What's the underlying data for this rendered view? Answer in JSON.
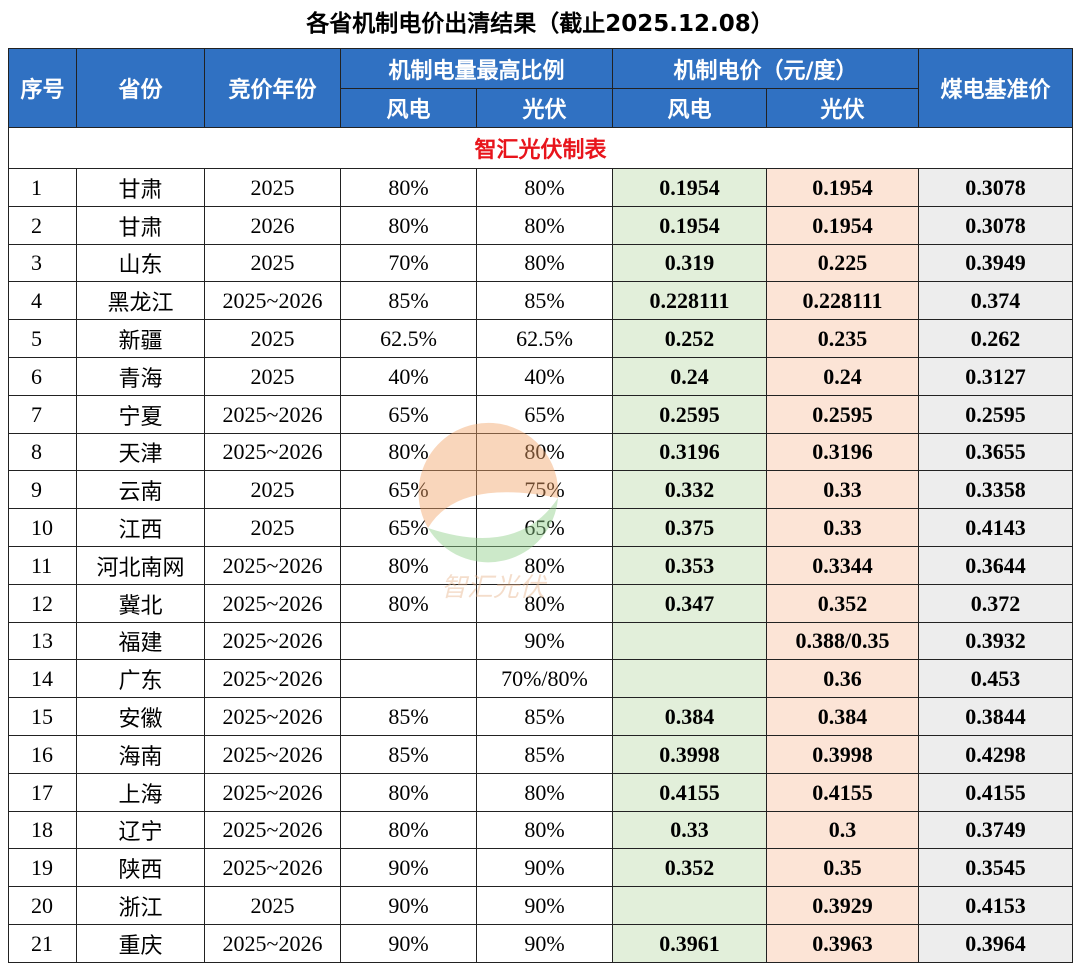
{
  "title": "各省机制电价出清结果（截止2025.12.08）",
  "header": {
    "seq": "序号",
    "province": "省份",
    "year": "竞价年份",
    "ratio": "机制电量最高比例",
    "price": "机制电价（元/度）",
    "coal": "煤电基准价",
    "ratio_wind": "风电",
    "ratio_solar": "光伏",
    "price_wind": "风电",
    "price_solar": "光伏"
  },
  "subtitle": "智汇光伏制表",
  "watermark": "智汇光伏",
  "table": {
    "rows": [
      [
        "1",
        "甘肃",
        "2025",
        "80%",
        "80%",
        "0.1954",
        "0.1954",
        "0.3078"
      ],
      [
        "2",
        "甘肃",
        "2026",
        "80%",
        "80%",
        "0.1954",
        "0.1954",
        "0.3078"
      ],
      [
        "3",
        "山东",
        "2025",
        "70%",
        "80%",
        "0.319",
        "0.225",
        "0.3949"
      ],
      [
        "4",
        "黑龙江",
        "2025~2026",
        "85%",
        "85%",
        "0.228111",
        "0.228111",
        "0.374"
      ],
      [
        "5",
        "新疆",
        "2025",
        "62.5%",
        "62.5%",
        "0.252",
        "0.235",
        "0.262"
      ],
      [
        "6",
        "青海",
        "2025",
        "40%",
        "40%",
        "0.24",
        "0.24",
        "0.3127"
      ],
      [
        "7",
        "宁夏",
        "2025~2026",
        "65%",
        "65%",
        "0.2595",
        "0.2595",
        "0.2595"
      ],
      [
        "8",
        "天津",
        "2025~2026",
        "80%",
        "80%",
        "0.3196",
        "0.3196",
        "0.3655"
      ],
      [
        "9",
        "云南",
        "2025",
        "65%",
        "75%",
        "0.332",
        "0.33",
        "0.3358"
      ],
      [
        "10",
        "江西",
        "2025",
        "65%",
        "65%",
        "0.375",
        "0.33",
        "0.4143"
      ],
      [
        "11",
        "河北南网",
        "2025~2026",
        "80%",
        "80%",
        "0.353",
        "0.3344",
        "0.3644"
      ],
      [
        "12",
        "冀北",
        "2025~2026",
        "80%",
        "80%",
        "0.347",
        "0.352",
        "0.372"
      ],
      [
        "13",
        "福建",
        "2025~2026",
        null,
        "90%",
        null,
        "0.388/0.35",
        "0.3932"
      ],
      [
        "14",
        "广东",
        "2025~2026",
        null,
        "70%/80%",
        null,
        "0.36",
        "0.453"
      ],
      [
        "15",
        "安徽",
        "2025~2026",
        "85%",
        "85%",
        "0.384",
        "0.384",
        "0.3844"
      ],
      [
        "16",
        "海南",
        "2025~2026",
        "85%",
        "85%",
        "0.3998",
        "0.3998",
        "0.4298"
      ],
      [
        "17",
        "上海",
        "2025~2026",
        "80%",
        "80%",
        "0.4155",
        "0.4155",
        "0.4155"
      ],
      [
        "18",
        "辽宁",
        "2025~2026",
        "80%",
        "80%",
        "0.33",
        "0.3",
        "0.3749"
      ],
      [
        "19",
        "陕西",
        "2025~2026",
        "90%",
        "90%",
        "0.352",
        "0.35",
        "0.3545"
      ],
      [
        "20",
        "浙江",
        "2025",
        "90%",
        "90%",
        null,
        "0.3929",
        "0.4153"
      ],
      [
        "21",
        "重庆",
        "2025~2026",
        "90%",
        "90%",
        "0.3961",
        "0.3963",
        "0.3964"
      ]
    ]
  }
}
